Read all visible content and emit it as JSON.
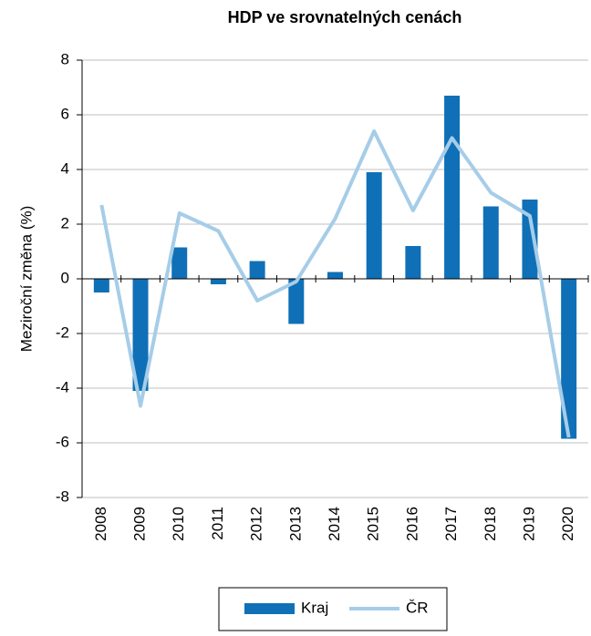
{
  "chart_data": {
    "type": "bar",
    "title": "HDP ve srovnatelných cenách",
    "y_label": "Meziroční změna (%)",
    "categories": [
      "2008",
      "2009",
      "2010",
      "2011",
      "2012",
      "2013",
      "2014",
      "2015",
      "2016",
      "2017",
      "2018",
      "2019",
      "2020"
    ],
    "series": [
      {
        "name": "Kraj",
        "type": "bar",
        "color": "#0f70b7",
        "values": [
          -0.5,
          -4.1,
          1.15,
          -0.2,
          0.65,
          -1.65,
          0.25,
          3.9,
          1.2,
          6.7,
          2.65,
          2.9,
          -5.85
        ]
      },
      {
        "name": "ČR",
        "type": "line",
        "color": "#a6cde8",
        "values": [
          2.7,
          -4.65,
          2.4,
          1.75,
          -0.8,
          -0.1,
          2.2,
          5.4,
          2.5,
          5.15,
          3.15,
          2.3,
          -5.8
        ]
      }
    ],
    "ylim": [
      -8,
      8
    ],
    "yticks": [
      -8,
      -6,
      -4,
      -2,
      0,
      2,
      4,
      6,
      8
    ],
    "grid": true
  }
}
